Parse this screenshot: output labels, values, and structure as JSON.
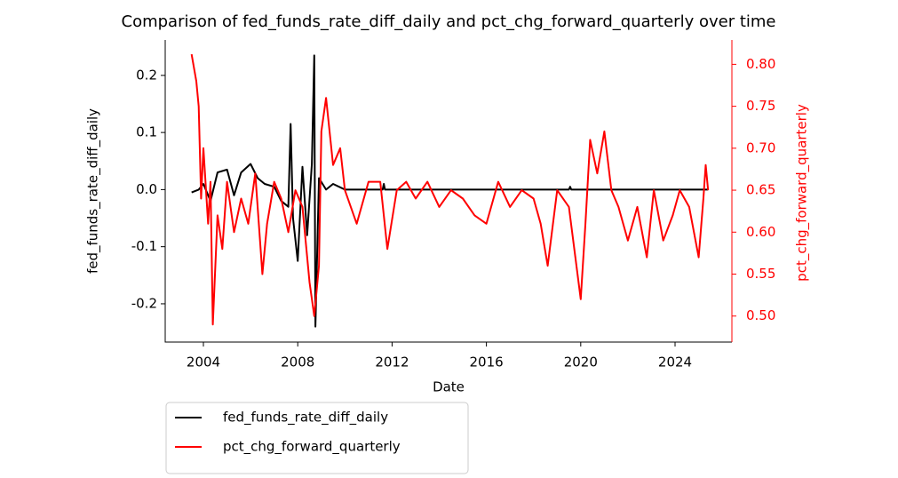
{
  "chart_data": {
    "type": "line",
    "title": "Comparison of fed_funds_rate_diff_daily and pct_chg_forward_quarterly over time",
    "xlabel": "Date",
    "ylabel": "fed_funds_rate_diff_daily",
    "y2label": "pct_chg_forward_quarterly",
    "xlim": [
      2002.38,
      2026.41
    ],
    "xticks": [
      2004,
      2008,
      2012,
      2016,
      2020,
      2024
    ],
    "ylim": [
      -0.267,
      0.262
    ],
    "yticks": [
      -0.2,
      -0.1,
      {
        "value": 0,
        "label": "0.0"
      },
      0.1,
      0.2
    ],
    "y2lim": [
      0.469,
      0.829
    ],
    "y2ticks": [
      {
        "value": 0.5,
        "label": "0.50"
      },
      0.55,
      {
        "value": 0.6,
        "label": "0.60"
      },
      0.65,
      {
        "value": 0.7,
        "label": "0.70"
      },
      0.75,
      {
        "value": 0.8,
        "label": "0.80"
      }
    ],
    "y2color": "#ff0000",
    "legend": "below-left",
    "series": [
      {
        "name": "fed_funds_rate_diff_daily",
        "color": "#000000",
        "axis": "y",
        "x": [
          2003.5,
          2003.8,
          2004.0,
          2004.3,
          2004.6,
          2005.0,
          2005.3,
          2005.6,
          2006.0,
          2006.3,
          2006.6,
          2007.0,
          2007.3,
          2007.6,
          2007.7,
          2007.8,
          2008.0,
          2008.2,
          2008.4,
          2008.6,
          2008.7,
          2008.75,
          2008.9,
          2009.2,
          2009.5,
          2010.0,
          2011.6,
          2011.65,
          2011.7,
          2019.5,
          2019.55,
          2019.6,
          2025.4
        ],
        "values": [
          -0.005,
          0.0,
          0.01,
          -0.02,
          0.03,
          0.035,
          -0.01,
          0.03,
          0.045,
          0.02,
          0.01,
          0.005,
          -0.02,
          -0.03,
          0.115,
          -0.05,
          -0.125,
          0.04,
          -0.08,
          0.045,
          0.235,
          -0.24,
          0.02,
          0.0,
          0.01,
          0.0,
          0.0,
          0.01,
          0.0,
          0.0,
          0.005,
          0.0,
          0.0
        ]
      },
      {
        "name": "pct_chg_forward_quarterly",
        "color": "#ff0000",
        "axis": "y2",
        "x": [
          2003.5,
          2003.7,
          2003.8,
          2003.9,
          2004.0,
          2004.2,
          2004.3,
          2004.4,
          2004.6,
          2004.8,
          2005.0,
          2005.3,
          2005.6,
          2005.9,
          2006.2,
          2006.5,
          2006.7,
          2007.0,
          2007.3,
          2007.6,
          2007.9,
          2008.2,
          2008.5,
          2008.7,
          2008.9,
          2009.0,
          2009.2,
          2009.5,
          2009.8,
          2010.0,
          2010.5,
          2011.0,
          2011.5,
          2011.8,
          2012.2,
          2012.6,
          2013.0,
          2013.5,
          2014.0,
          2014.5,
          2015.0,
          2015.5,
          2016.0,
          2016.5,
          2017.0,
          2017.5,
          2018.0,
          2018.3,
          2018.6,
          2019.0,
          2019.5,
          2020.0,
          2020.2,
          2020.4,
          2020.7,
          2021.0,
          2021.3,
          2021.6,
          2022.0,
          2022.4,
          2022.8,
          2023.1,
          2023.5,
          2023.9,
          2024.2,
          2024.6,
          2025.0,
          2025.2,
          2025.3,
          2025.4
        ],
        "values": [
          0.812,
          0.78,
          0.75,
          0.64,
          0.7,
          0.61,
          0.66,
          0.49,
          0.62,
          0.58,
          0.66,
          0.6,
          0.64,
          0.61,
          0.67,
          0.55,
          0.61,
          0.66,
          0.64,
          0.6,
          0.65,
          0.63,
          0.54,
          0.5,
          0.56,
          0.72,
          0.76,
          0.68,
          0.7,
          0.65,
          0.61,
          0.66,
          0.66,
          0.58,
          0.65,
          0.66,
          0.64,
          0.66,
          0.63,
          0.65,
          0.64,
          0.62,
          0.61,
          0.66,
          0.63,
          0.65,
          0.64,
          0.61,
          0.56,
          0.65,
          0.63,
          0.52,
          0.61,
          0.71,
          0.67,
          0.72,
          0.65,
          0.63,
          0.59,
          0.63,
          0.57,
          0.65,
          0.59,
          0.62,
          0.65,
          0.63,
          0.57,
          0.64,
          0.68,
          0.65
        ]
      }
    ]
  }
}
